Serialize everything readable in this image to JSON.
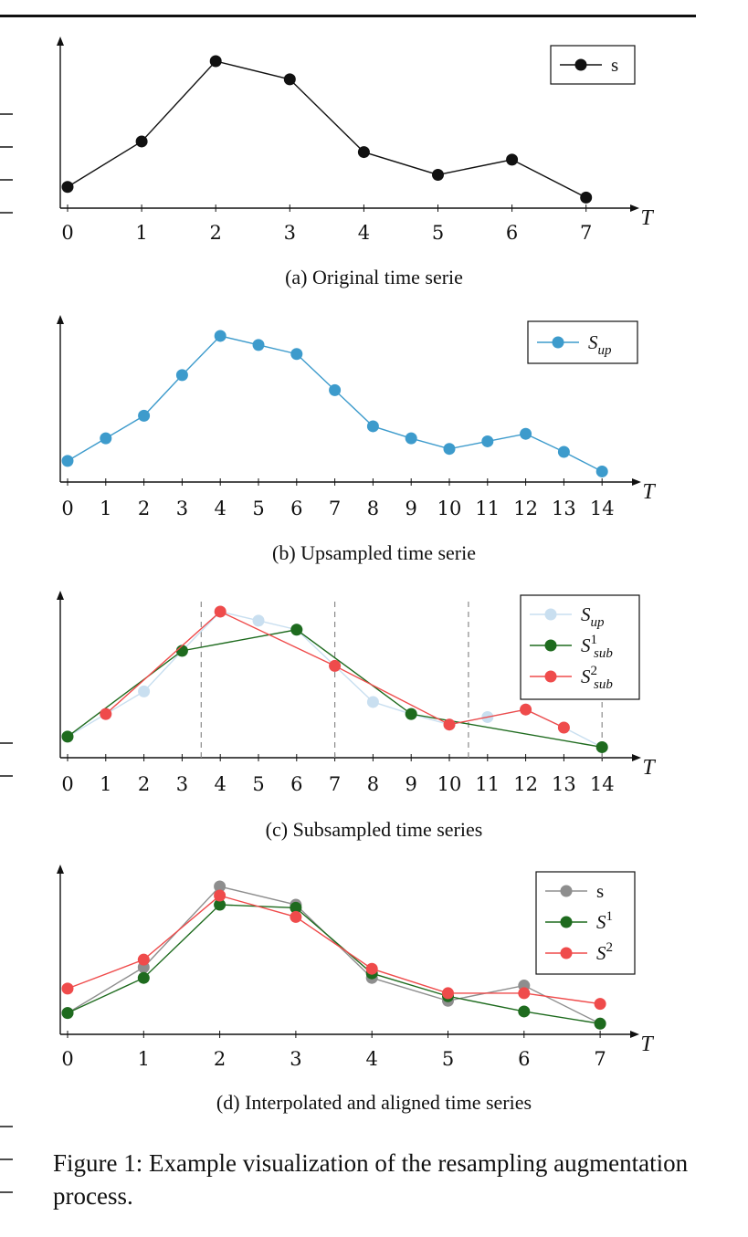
{
  "figure_caption": "Figure 1: Example visualization of the resampling augmentation process.",
  "colors": {
    "black": "#111111",
    "blue": "#3d9bcc",
    "light_blue": "#c9dff0",
    "green": "#1e6b1e",
    "red": "#ef4b4b",
    "gray": "#8e8e8e",
    "dashed": "#8a8a8a"
  },
  "chart_data": [
    {
      "type": "line",
      "caption": "(a) Original time serie",
      "xlabel": "T",
      "x_ticks": [
        0,
        1,
        2,
        3,
        4,
        5,
        6,
        7
      ],
      "xlim": [
        0,
        7.5
      ],
      "ylim": [
        0,
        1
      ],
      "legend_position": "top-right",
      "series": [
        {
          "name": "s",
          "color_key": "black",
          "x": [
            0,
            1,
            2,
            3,
            4,
            5,
            6,
            7
          ],
          "y": [
            0.14,
            0.44,
            0.97,
            0.85,
            0.37,
            0.22,
            0.32,
            0.07
          ]
        }
      ]
    },
    {
      "type": "line",
      "caption": "(b) Upsampled time serie",
      "xlabel": "T",
      "x_ticks": [
        0,
        1,
        2,
        3,
        4,
        5,
        6,
        7,
        8,
        9,
        10,
        11,
        12,
        13,
        14
      ],
      "xlim": [
        0,
        15
      ],
      "ylim": [
        0,
        1
      ],
      "legend_position": "top-right",
      "series": [
        {
          "name": "S_up",
          "color_key": "blue",
          "x": [
            0,
            1,
            2,
            3,
            4,
            5,
            6,
            7,
            8,
            9,
            10,
            11,
            12,
            13,
            14
          ],
          "y": [
            0.14,
            0.29,
            0.44,
            0.71,
            0.97,
            0.91,
            0.85,
            0.61,
            0.37,
            0.29,
            0.22,
            0.27,
            0.32,
            0.2,
            0.07
          ]
        }
      ]
    },
    {
      "type": "line",
      "caption": "(c) Subsampled time series",
      "xlabel": "T",
      "x_ticks": [
        0,
        1,
        2,
        3,
        4,
        5,
        6,
        7,
        8,
        9,
        10,
        11,
        12,
        13,
        14
      ],
      "xlim": [
        0,
        15
      ],
      "ylim": [
        0,
        1
      ],
      "dashed_lines_x": [
        3.5,
        7,
        10.5,
        14
      ],
      "legend_position": "top-right",
      "series": [
        {
          "name": "S_up",
          "color_key": "light_blue",
          "x": [
            0,
            1,
            2,
            3,
            4,
            5,
            6,
            7,
            8,
            9,
            10,
            11,
            12,
            13,
            14
          ],
          "y": [
            0.14,
            0.29,
            0.44,
            0.71,
            0.97,
            0.91,
            0.85,
            0.61,
            0.37,
            0.29,
            0.22,
            0.27,
            0.32,
            0.2,
            0.07
          ]
        },
        {
          "name": "S^1_sub",
          "color_key": "green",
          "x": [
            0,
            3,
            6,
            9,
            14
          ],
          "y": [
            0.14,
            0.71,
            0.85,
            0.29,
            0.07
          ]
        },
        {
          "name": "S^2_sub",
          "color_key": "red",
          "x": [
            1,
            4,
            7,
            10,
            12,
            13
          ],
          "y": [
            0.29,
            0.97,
            0.61,
            0.22,
            0.32,
            0.2
          ]
        }
      ]
    },
    {
      "type": "line",
      "caption": "(d) Interpolated and aligned time series",
      "xlabel": "T",
      "x_ticks": [
        0,
        1,
        2,
        3,
        4,
        5,
        6,
        7
      ],
      "xlim": [
        0,
        7.5
      ],
      "ylim": [
        0,
        1
      ],
      "legend_position": "top-right",
      "series": [
        {
          "name": "s",
          "color_key": "gray",
          "x": [
            0,
            1,
            2,
            3,
            4,
            5,
            6,
            7
          ],
          "y": [
            0.14,
            0.44,
            0.97,
            0.85,
            0.37,
            0.22,
            0.32,
            0.07
          ]
        },
        {
          "name": "S^1",
          "color_key": "green",
          "x": [
            0,
            1,
            2,
            3,
            4,
            5,
            6,
            7
          ],
          "y": [
            0.14,
            0.37,
            0.85,
            0.83,
            0.4,
            0.25,
            0.15,
            0.07
          ]
        },
        {
          "name": "S^2",
          "color_key": "red",
          "x": [
            0,
            1,
            2,
            3,
            4,
            5,
            6,
            7
          ],
          "y": [
            0.3,
            0.49,
            0.91,
            0.77,
            0.43,
            0.27,
            0.27,
            0.2
          ]
        }
      ]
    }
  ]
}
